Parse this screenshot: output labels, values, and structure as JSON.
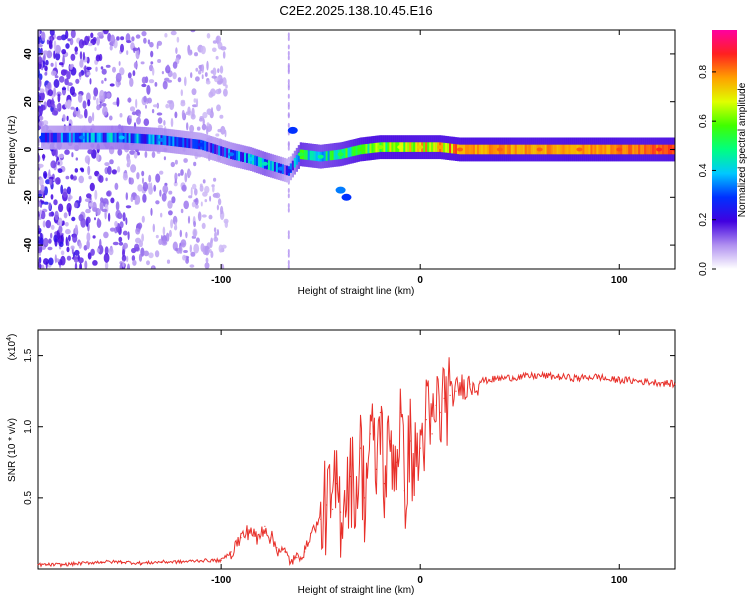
{
  "title": "C2E2.2025.138.10.45.E16",
  "colors": {
    "snr_line": "#e8302a",
    "ridge_low": "#3b00c8",
    "ridge_mid": "#00d0e0",
    "ridge_high": "#ff2040"
  },
  "chart_data": [
    {
      "type": "heatmap",
      "xlabel": "Height of straight line (km)",
      "ylabel": "Frequency (Hz)",
      "xlim": [
        -192,
        128
      ],
      "ylim": [
        -50,
        50
      ],
      "xticks": [
        -100,
        0,
        100
      ],
      "yticks": [
        -40,
        -20,
        0,
        20,
        40
      ],
      "grid": false,
      "ridge": {
        "x": [
          -190,
          -170,
          -150,
          -130,
          -110,
          -95,
          -85,
          -78,
          -70,
          -66,
          -60,
          -50,
          -40,
          -30,
          -20,
          -10,
          0,
          10,
          20,
          40,
          60,
          80,
          100,
          120,
          128
        ],
        "y": [
          5,
          5,
          5,
          4,
          2,
          -2,
          -4,
          -6,
          -8,
          -9,
          -2,
          -3,
          -2,
          0,
          1,
          1,
          1,
          1,
          0,
          0,
          0,
          0,
          0,
          0,
          0
        ],
        "amplitude": [
          0.25,
          0.3,
          0.35,
          0.3,
          0.25,
          0.3,
          0.35,
          0.4,
          0.3,
          0.2,
          0.5,
          0.45,
          0.5,
          0.55,
          0.6,
          0.65,
          0.7,
          0.75,
          0.8,
          0.8,
          0.8,
          0.8,
          0.82,
          0.85,
          0.85
        ]
      },
      "colorbar": {
        "label": "Normalized spectral amplitude",
        "range": [
          0,
          0.97
        ],
        "ticks": [
          0.0,
          0.2,
          0.4,
          0.6,
          0.8
        ],
        "tick_labels": [
          "0.0",
          "0.2",
          "0.4",
          "0.6",
          "0.8"
        ],
        "colormap": [
          "#ffffff",
          "#b090f0",
          "#4000e0",
          "#0030ff",
          "#00c8ff",
          "#00ff80",
          "#40ff00",
          "#e0ff00",
          "#ffa000",
          "#ff2020",
          "#ff00a0"
        ]
      }
    },
    {
      "type": "line",
      "xlabel": "Height of straight line (km)",
      "ylabel": "SNR (10 * v/v)",
      "scale_note": "(x10",
      "scale_exp": "4",
      "xlim": [
        -192,
        128
      ],
      "ylim": [
        0,
        1.68
      ],
      "xticks": [
        -100,
        0,
        100
      ],
      "yticks": [
        0.5,
        1.0,
        1.5
      ],
      "ytick_labels": [
        "0.5",
        "1.0",
        "1.5"
      ],
      "grid": false,
      "series": [
        {
          "x": [
            -192,
            -180,
            -170,
            -160,
            -150,
            -140,
            -130,
            -120,
            -110,
            -100,
            -95,
            -90,
            -85,
            -82,
            -78,
            -75,
            -72,
            -68,
            -65,
            -62,
            -58,
            -55,
            -50,
            -47,
            -44,
            -42,
            -40,
            -38,
            -35,
            -32,
            -30,
            -28,
            -25,
            -22,
            -20,
            -18,
            -15,
            -12,
            -10,
            -8,
            -5,
            -3,
            0,
            3,
            6,
            8,
            10,
            12,
            15,
            18,
            20,
            25,
            30,
            35,
            40,
            50,
            60,
            70,
            80,
            85,
            90,
            95,
            100,
            110,
            120,
            128
          ],
          "y": [
            0.03,
            0.03,
            0.04,
            0.05,
            0.05,
            0.04,
            0.05,
            0.05,
            0.06,
            0.06,
            0.12,
            0.22,
            0.28,
            0.2,
            0.3,
            0.22,
            0.15,
            0.12,
            0.05,
            0.08,
            0.12,
            0.25,
            0.35,
            0.45,
            0.42,
            0.6,
            0.4,
            0.55,
            0.65,
            0.55,
            0.85,
            0.5,
            0.95,
            0.7,
            1.1,
            0.6,
            0.9,
            0.75,
            1.1,
            0.55,
            0.9,
            0.7,
            0.85,
            1.05,
            0.95,
            1.15,
            1.1,
            1.2,
            1.22,
            1.25,
            1.28,
            1.3,
            1.32,
            1.33,
            1.34,
            1.35,
            1.36,
            1.35,
            1.34,
            1.35,
            1.35,
            1.33,
            1.33,
            1.32,
            1.31,
            1.3
          ]
        }
      ]
    }
  ]
}
